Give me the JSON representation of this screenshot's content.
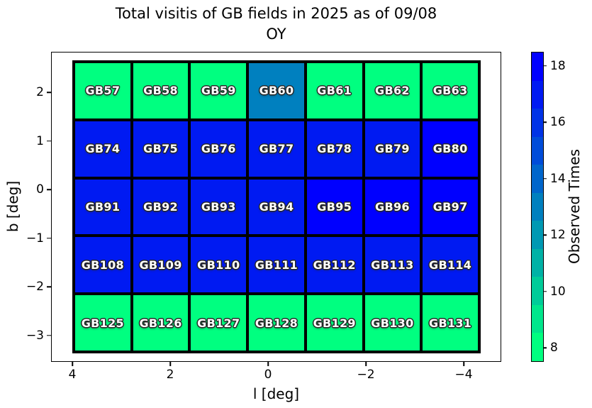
{
  "title": {
    "line1": "Total visitis of GB fields in 2025 as of 09/08",
    "line2": "OY"
  },
  "chart_data": {
    "type": "heatmap",
    "title": "Total visitis of GB fields in 2025 as of 09/08 OY",
    "xlabel": "l [deg]",
    "ylabel": "b [deg]",
    "x_axis_reversed": true,
    "x_ticks": [
      {
        "label": "4",
        "value": 4
      },
      {
        "label": "2",
        "value": 2
      },
      {
        "label": "0",
        "value": 0
      },
      {
        "label": "−2",
        "value": -2
      },
      {
        "label": "−4",
        "value": -4
      }
    ],
    "y_ticks": [
      {
        "label": "2",
        "value": 2
      },
      {
        "label": "1",
        "value": 1
      },
      {
        "label": "0",
        "value": 0
      },
      {
        "label": "−1",
        "value": -1
      },
      {
        "label": "−2",
        "value": -2
      },
      {
        "label": "−3",
        "value": -3
      }
    ],
    "row_b_centers": [
      2.05,
      0.85,
      -0.35,
      -1.55,
      -2.75
    ],
    "rows": [
      [
        {
          "label": "GB57",
          "value": 8
        },
        {
          "label": "GB58",
          "value": 8
        },
        {
          "label": "GB59",
          "value": 8
        },
        {
          "label": "GB60",
          "value": 13
        },
        {
          "label": "GB61",
          "value": 8
        },
        {
          "label": "GB62",
          "value": 8
        },
        {
          "label": "GB63",
          "value": 8
        }
      ],
      [
        {
          "label": "GB74",
          "value": 17
        },
        {
          "label": "GB75",
          "value": 17
        },
        {
          "label": "GB76",
          "value": 17
        },
        {
          "label": "GB77",
          "value": 17
        },
        {
          "label": "GB78",
          "value": 17
        },
        {
          "label": "GB79",
          "value": 17
        },
        {
          "label": "GB80",
          "value": 18
        }
      ],
      [
        {
          "label": "GB91",
          "value": 17
        },
        {
          "label": "GB92",
          "value": 17
        },
        {
          "label": "GB93",
          "value": 17
        },
        {
          "label": "GB94",
          "value": 17
        },
        {
          "label": "GB95",
          "value": 18
        },
        {
          "label": "GB96",
          "value": 18
        },
        {
          "label": "GB97",
          "value": 18
        }
      ],
      [
        {
          "label": "GB108",
          "value": 17
        },
        {
          "label": "GB109",
          "value": 17
        },
        {
          "label": "GB110",
          "value": 17
        },
        {
          "label": "GB111",
          "value": 17
        },
        {
          "label": "GB112",
          "value": 17
        },
        {
          "label": "GB113",
          "value": 17
        },
        {
          "label": "GB114",
          "value": 17
        }
      ],
      [
        {
          "label": "GB125",
          "value": 8
        },
        {
          "label": "GB126",
          "value": 8
        },
        {
          "label": "GB127",
          "value": 8
        },
        {
          "label": "GB128",
          "value": 8
        },
        {
          "label": "GB129",
          "value": 8
        },
        {
          "label": "GB130",
          "value": 8
        },
        {
          "label": "GB131",
          "value": 8
        }
      ]
    ],
    "value_colors": {
      "8": "#00FF80",
      "9": "#00E68C",
      "10": "#00CC99",
      "11": "#00B2A6",
      "12": "#0099B3",
      "13": "#0080BF",
      "14": "#0066CC",
      "15": "#004CD9",
      "16": "#0033E6",
      "17": "#001AF2",
      "18": "#0000FF"
    },
    "colorbar": {
      "label": "Observed Times",
      "vmin": 7.5,
      "vmax": 18.5,
      "colormap": "winter_r discrete (11 integer levels 8–18)",
      "segments": [
        {
          "value": 8,
          "color": "#00FF80"
        },
        {
          "value": 9,
          "color": "#00E68C"
        },
        {
          "value": 10,
          "color": "#00CC99"
        },
        {
          "value": 11,
          "color": "#00B2A6"
        },
        {
          "value": 12,
          "color": "#0099B3"
        },
        {
          "value": 13,
          "color": "#0080BF"
        },
        {
          "value": 14,
          "color": "#0066CC"
        },
        {
          "value": 15,
          "color": "#004CD9"
        },
        {
          "value": 16,
          "color": "#0033E6"
        },
        {
          "value": 17,
          "color": "#001AF2"
        },
        {
          "value": 18,
          "color": "#0000FF"
        }
      ],
      "ticks": [
        {
          "label": "8",
          "value": 8
        },
        {
          "label": "10",
          "value": 10
        },
        {
          "label": "12",
          "value": 12
        },
        {
          "label": "14",
          "value": 14
        },
        {
          "label": "16",
          "value": 16
        },
        {
          "label": "18",
          "value": 18
        }
      ]
    }
  }
}
